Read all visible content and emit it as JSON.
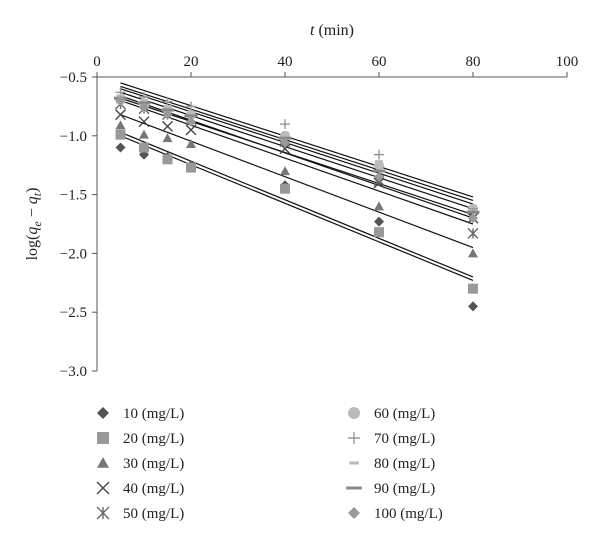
{
  "chart_data": {
    "type": "scatter",
    "xlabel": "t (min)",
    "ylabel": "log(qe − qt)",
    "xlim": [
      0,
      100
    ],
    "ylim": [
      -3.0,
      -0.5
    ],
    "x_ticks": [
      "0",
      "20",
      "40",
      "60",
      "80",
      "100"
    ],
    "y_ticks": [
      "−0.5",
      "−1.0",
      "−1.5",
      "−2.0",
      "−2.5",
      "−3.0"
    ],
    "x_axis_position": "top",
    "grid": false,
    "legend_position": "bottom",
    "x": [
      5,
      10,
      15,
      20,
      40,
      60,
      80
    ],
    "series": [
      {
        "name": "10 (mg/L)",
        "marker": "diamond",
        "color": "#555555",
        "values": [
          -1.1,
          -1.16,
          -1.18,
          -1.25,
          -1.42,
          -1.73,
          -2.45
        ],
        "fit": [
          [
            5,
            -1.0
          ],
          [
            80,
            -2.23
          ]
        ]
      },
      {
        "name": "20 (mg/L)",
        "marker": "square",
        "color": "#999999",
        "values": [
          -0.99,
          -1.1,
          -1.2,
          -1.27,
          -1.45,
          -1.82,
          -2.3
        ],
        "fit": [
          [
            5,
            -0.97
          ],
          [
            80,
            -2.2
          ]
        ]
      },
      {
        "name": "30 (mg/L)",
        "marker": "triangle",
        "color": "#777777",
        "values": [
          -0.91,
          -0.99,
          -1.02,
          -1.07,
          -1.3,
          -1.6,
          -2.0
        ],
        "fit": [
          [
            5,
            -0.82
          ],
          [
            80,
            -1.95
          ]
        ]
      },
      {
        "name": "40 (mg/L)",
        "marker": "x",
        "color": "#444444",
        "values": [
          -0.82,
          -0.88,
          -0.92,
          -0.95,
          -1.11,
          -1.4,
          -1.7
        ],
        "fit": [
          [
            5,
            -0.7
          ],
          [
            80,
            -1.75
          ]
        ]
      },
      {
        "name": "50 (mg/L)",
        "marker": "asterisk",
        "color": "#666666",
        "values": [
          -0.73,
          -0.77,
          -0.82,
          -0.86,
          -1.05,
          -1.38,
          -1.83
        ],
        "fit": [
          [
            5,
            -0.66
          ],
          [
            80,
            -1.7
          ]
        ]
      },
      {
        "name": "60 (mg/L)",
        "marker": "circle",
        "color": "#bbbbbb",
        "values": [
          -0.7,
          -0.74,
          -0.78,
          -0.82,
          -1.0,
          -1.25,
          -1.62
        ],
        "fit": [
          [
            5,
            -0.63
          ],
          [
            80,
            -1.62
          ]
        ]
      },
      {
        "name": "70 (mg/L)",
        "marker": "plus",
        "color": "#999999",
        "values": [
          -0.63,
          -0.67,
          -0.71,
          -0.75,
          -0.9,
          -1.16,
          -1.62
        ],
        "fit": [
          [
            5,
            -0.58
          ],
          [
            80,
            -1.55
          ]
        ]
      },
      {
        "name": "80 (mg/L)",
        "marker": "dash",
        "color": "#bbbbbb",
        "values": [
          -0.66,
          -0.7,
          -0.75,
          -0.8,
          -0.98,
          -1.22,
          -1.6
        ],
        "fit": [
          [
            5,
            -0.55
          ],
          [
            80,
            -1.52
          ]
        ]
      },
      {
        "name": "90 (mg/L)",
        "marker": "bar",
        "color": "#888888",
        "values": [
          -0.68,
          -0.72,
          -0.78,
          -0.83,
          -1.02,
          -1.3,
          -1.65
        ],
        "fit": [
          [
            5,
            -0.6
          ],
          [
            80,
            -1.58
          ]
        ]
      },
      {
        "name": "100 (mg/L)",
        "marker": "diamond",
        "color": "#999999",
        "values": [
          -0.7,
          -0.76,
          -0.82,
          -0.88,
          -1.06,
          -1.35,
          -1.7
        ],
        "fit": [
          [
            5,
            -0.68
          ],
          [
            80,
            -1.67
          ]
        ]
      }
    ]
  }
}
